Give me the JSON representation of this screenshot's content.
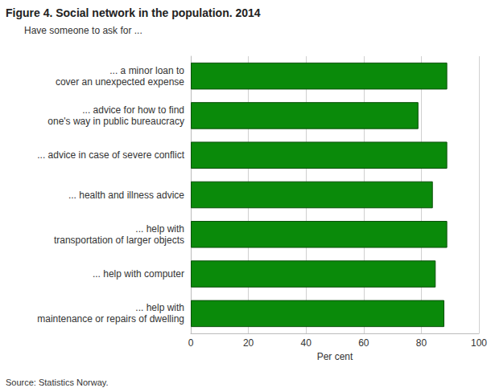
{
  "chart_data": {
    "type": "bar",
    "orientation": "horizontal",
    "title": "Figure 4. Social network in the population. 2014",
    "subtitle": "Have someone to ask for ...",
    "xlabel": "Per cent",
    "annotations": [
      "Source: Statistics Norway."
    ],
    "categories": [
      "... a minor loan to\ncover an unexpected expense",
      "... advice for how to find\none's way in public bureaucracy",
      "... advice in case of severe conflict",
      "... health and illness advice",
      "... help with\ntransportation of larger objects",
      "... help with computer",
      "... help with\nmaintenance or repairs of dwelling"
    ],
    "values": [
      89,
      79,
      89,
      84,
      89,
      85,
      88
    ],
    "color": "#0a8a0a",
    "xlim": [
      0,
      100
    ],
    "xticks": [
      0,
      20,
      40,
      60,
      80,
      100
    ],
    "grid": true
  }
}
